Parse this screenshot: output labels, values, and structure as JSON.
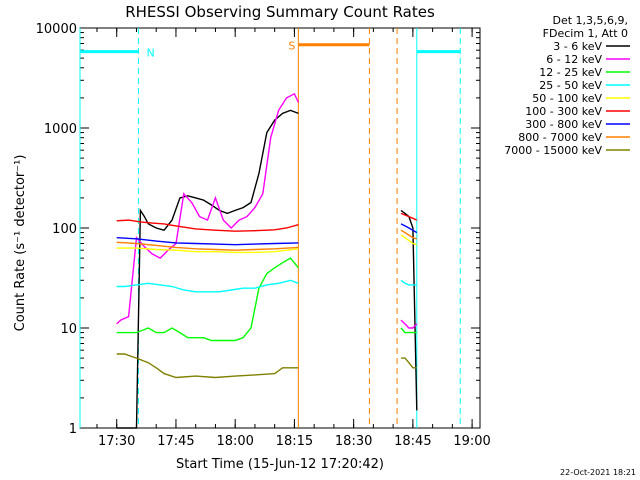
{
  "chart_data": {
    "type": "line",
    "title": "RHESSI Observing Summary Count Rates",
    "xlabel": "Start Time (15-Jun-12 17:20:42)",
    "ylabel": "Count Rate (s⁻¹ detector⁻¹)",
    "y_scale": "log",
    "ylim": [
      1,
      10000
    ],
    "xlim_minutes_after_17_00": [
      20.7,
      122
    ],
    "x_ticks": [
      {
        "label": "17:30",
        "minutes": 30
      },
      {
        "label": "17:45",
        "minutes": 45
      },
      {
        "label": "18:00",
        "minutes": 60
      },
      {
        "label": "18:15",
        "minutes": 75
      },
      {
        "label": "18:30",
        "minutes": 90
      },
      {
        "label": "18:45",
        "minutes": 105
      },
      {
        "label": "19:00",
        "minutes": 120
      }
    ],
    "y_ticks": [
      {
        "label": "1",
        "value": 1
      },
      {
        "label": "10",
        "value": 10
      },
      {
        "label": "100",
        "value": 100
      },
      {
        "label": "1000",
        "value": 1000
      },
      {
        "label": "10000",
        "value": 10000
      }
    ],
    "legend": {
      "placement": "right",
      "header": [
        "Det 1,3,5,6,9,",
        "FDecim 1, Att 0"
      ]
    },
    "series": [
      {
        "name": "3 - 6 keV",
        "color": "#000000",
        "x": [
          30,
          32,
          34,
          35,
          36,
          37,
          38,
          40,
          42,
          44,
          46,
          48,
          50,
          52,
          54,
          56,
          58,
          60,
          62,
          64,
          66,
          68,
          70,
          72,
          74,
          76
        ],
        "y": [
          1,
          1,
          1,
          1,
          150,
          130,
          110,
          100,
          95,
          120,
          200,
          210,
          200,
          190,
          170,
          150,
          140,
          150,
          160,
          180,
          350,
          900,
          1200,
          1400,
          1500,
          1400
        ]
      },
      {
        "name": "6 - 12 keV",
        "color": "#ff00ff",
        "x": [
          30,
          31,
          33,
          35,
          37,
          39,
          41,
          43,
          45,
          47,
          49,
          51,
          53,
          55,
          57,
          59,
          61,
          63,
          65,
          67,
          69,
          71,
          73,
          75,
          76
        ],
        "y": [
          11,
          12,
          13,
          80,
          65,
          55,
          50,
          60,
          70,
          220,
          180,
          130,
          120,
          200,
          120,
          100,
          120,
          130,
          160,
          220,
          800,
          1500,
          2000,
          2200,
          1800
        ]
      },
      {
        "name": "12 - 25 keV",
        "color": "#00ff00",
        "x": [
          30,
          32,
          35,
          38,
          40,
          42,
          44,
          46,
          48,
          50,
          52,
          54,
          56,
          58,
          60,
          62,
          64,
          66,
          68,
          70,
          72,
          74,
          76
        ],
        "y": [
          9,
          9,
          9,
          10,
          9,
          9,
          10,
          9,
          8,
          8,
          8,
          7.5,
          7.5,
          7.5,
          7.5,
          8,
          10,
          25,
          35,
          40,
          45,
          50,
          40
        ]
      },
      {
        "name": "25 - 50 keV",
        "color": "#00ffff",
        "x": [
          30,
          32,
          35,
          38,
          41,
          44,
          47,
          50,
          53,
          56,
          59,
          62,
          65,
          68,
          71,
          74,
          76
        ],
        "y": [
          26,
          26,
          27,
          28,
          27,
          26,
          24,
          23,
          23,
          23,
          24,
          25,
          25,
          27,
          28,
          30,
          28
        ]
      },
      {
        "name": "50 - 100 keV",
        "color": "#ffff00",
        "x": [
          30,
          35,
          40,
          45,
          50,
          55,
          60,
          65,
          70,
          76
        ],
        "y": [
          63,
          63,
          61,
          60,
          58,
          58,
          57,
          57,
          58,
          62
        ]
      },
      {
        "name": "100 - 300 keV",
        "color": "#ff0000",
        "x": [
          30,
          33,
          36,
          39,
          42,
          45,
          50,
          55,
          60,
          65,
          70,
          73,
          76
        ],
        "y": [
          118,
          120,
          115,
          112,
          110,
          105,
          98,
          95,
          93,
          94,
          96,
          100,
          108
        ]
      },
      {
        "name": "300 - 800 keV",
        "color": "#0000ff",
        "x": [
          30,
          35,
          40,
          45,
          50,
          55,
          60,
          65,
          70,
          76
        ],
        "y": [
          80,
          78,
          74,
          71,
          70,
          69,
          68,
          69,
          70,
          71
        ]
      },
      {
        "name": "800 - 7000 keV",
        "color": "#ff8000",
        "x": [
          30,
          35,
          40,
          45,
          50,
          55,
          60,
          65,
          70,
          76
        ],
        "y": [
          72,
          70,
          67,
          64,
          62,
          61,
          60,
          61,
          62,
          64
        ]
      },
      {
        "name": "7000 - 15000 keV",
        "color": "#808000",
        "x": [
          30,
          32,
          35,
          38,
          40,
          42,
          45,
          50,
          55,
          60,
          65,
          70,
          72,
          74,
          76
        ],
        "y": [
          5.5,
          5.5,
          5,
          4.5,
          4,
          3.5,
          3.2,
          3.3,
          3.2,
          3.3,
          3.4,
          3.5,
          4,
          4,
          4
        ]
      }
    ],
    "post_gap_series": [
      {
        "name": "3 - 6 keV",
        "x": [
          102,
          103,
          104,
          105,
          106
        ],
        "y": [
          150,
          140,
          130,
          100,
          1.5
        ]
      },
      {
        "name": "6 - 12 keV",
        "x": [
          102,
          103,
          104,
          105,
          106
        ],
        "y": [
          12,
          11,
          10,
          10,
          11
        ]
      },
      {
        "name": "12 - 25 keV",
        "x": [
          102,
          103,
          104,
          105,
          106
        ],
        "y": [
          10,
          9,
          9,
          9,
          9
        ]
      },
      {
        "name": "25 - 50 keV",
        "x": [
          102,
          103,
          104,
          105,
          106
        ],
        "y": [
          30,
          28,
          27,
          27,
          27
        ]
      },
      {
        "name": "50 - 100 keV",
        "x": [
          102,
          103,
          104,
          105,
          106
        ],
        "y": [
          85,
          80,
          75,
          70,
          68
        ]
      },
      {
        "name": "100 - 300 keV",
        "x": [
          102,
          103,
          104,
          105,
          106
        ],
        "y": [
          140,
          135,
          130,
          125,
          120
        ]
      },
      {
        "name": "300 - 800 keV",
        "x": [
          102,
          103,
          104,
          105,
          106
        ],
        "y": [
          110,
          105,
          100,
          95,
          90
        ]
      },
      {
        "name": "800 - 7000 keV",
        "x": [
          102,
          103,
          104,
          105,
          106
        ],
        "y": [
          95,
          90,
          85,
          80,
          78
        ]
      },
      {
        "name": "7000 - 15000 keV",
        "x": [
          102,
          103,
          104,
          105,
          106
        ],
        "y": [
          5,
          5,
          4.5,
          4,
          4
        ]
      }
    ],
    "annotations": [
      {
        "label": "N",
        "color": "#00ffff",
        "bar_x": [
          20.7,
          35.5
        ],
        "bar_y": 5800
      },
      {
        "label": "",
        "color": "#00ffff",
        "bar_x": [
          106,
          117
        ],
        "bar_y": 5800
      },
      {
        "label": "S",
        "color": "#ff8000",
        "bar_x": [
          76,
          94
        ],
        "bar_y": 6800
      }
    ],
    "vertical_lines": [
      {
        "x": 20.7,
        "color": "#00ffff",
        "style": "solid"
      },
      {
        "x": 35.5,
        "color": "#00ffff",
        "style": "dashed"
      },
      {
        "x": 76,
        "color": "#ff8000",
        "style": "solid"
      },
      {
        "x": 94,
        "color": "#ff8000",
        "style": "dashed"
      },
      {
        "x": 101,
        "color": "#ff8000",
        "style": "dashed"
      },
      {
        "x": 106,
        "color": "#00ffff",
        "style": "solid"
      },
      {
        "x": 117,
        "color": "#00ffff",
        "style": "dashed"
      }
    ],
    "footer_date": "22-Oct-2021 18:21"
  }
}
